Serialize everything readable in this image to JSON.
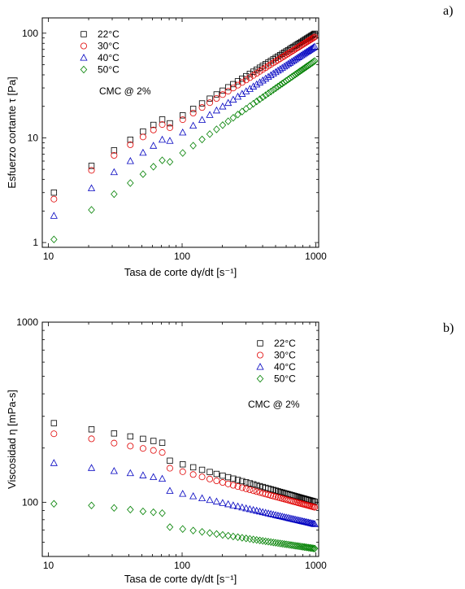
{
  "chart_data": [
    {
      "type": "scatter",
      "panel_label": "a)",
      "xlabel": "Tasa de corte dγ/dt [s⁻¹]",
      "ylabel": "Esfuerzo cortante τ [Pa]",
      "annotation": "CMC @ 2%",
      "xscale": "log",
      "yscale": "log",
      "xlim": [
        9,
        1050
      ],
      "ylim": [
        0.9,
        140
      ],
      "xticks": [
        10,
        100,
        1000
      ],
      "xtick_labels": [
        "10",
        "100",
        "1000"
      ],
      "yticks": [
        1,
        10,
        100
      ],
      "ytick_labels": [
        "1",
        "10",
        "100"
      ],
      "legend_position": "top-left",
      "series": [
        {
          "name": "22°C",
          "marker": "square",
          "color": "#000000",
          "k": 0.428,
          "n": 0.79,
          "sparse": [
            [
              11,
              3.0
            ],
            [
              21,
              5.4
            ],
            [
              31,
              7.6
            ],
            [
              41,
              9.6
            ],
            [
              51,
              11.5
            ],
            [
              61,
              13.3
            ],
            [
              71,
              15.0
            ]
          ]
        },
        {
          "name": "30°C",
          "marker": "circle",
          "color": "#e00000",
          "k": 0.372,
          "n": 0.8,
          "sparse": [
            [
              11,
              2.6
            ],
            [
              21,
              4.9
            ],
            [
              31,
              6.8
            ],
            [
              41,
              8.6
            ],
            [
              51,
              10.2
            ],
            [
              61,
              11.9
            ],
            [
              71,
              13.4
            ]
          ]
        },
        {
          "name": "40°C",
          "marker": "triangle",
          "color": "#0000c0",
          "k": 0.244,
          "n": 0.83,
          "sparse": [
            [
              11,
              1.8
            ],
            [
              21,
              3.3
            ],
            [
              31,
              4.7
            ],
            [
              41,
              6.0
            ],
            [
              51,
              7.2
            ],
            [
              61,
              8.4
            ],
            [
              71,
              9.6
            ]
          ]
        },
        {
          "name": "50°C",
          "marker": "diamond",
          "color": "#008000",
          "k": 0.118,
          "n": 0.89,
          "sparse": [
            [
              11,
              1.07
            ],
            [
              21,
              2.05
            ],
            [
              31,
              2.9
            ],
            [
              41,
              3.7
            ],
            [
              51,
              4.5
            ],
            [
              61,
              5.3
            ],
            [
              71,
              6.1
            ]
          ]
        }
      ],
      "dense_x": {
        "from": 81,
        "to": 1000,
        "step": 20
      }
    },
    {
      "type": "scatter",
      "panel_label": "b)",
      "xlabel": "Tasa de corte dγ/dt [s⁻¹]",
      "ylabel": "Viscosidad η [mPa-s]",
      "annotation": "CMC @ 2%",
      "xscale": "log",
      "yscale": "log",
      "xlim": [
        9,
        1050
      ],
      "ylim": [
        50,
        1000
      ],
      "xticks": [
        10,
        100,
        1000
      ],
      "xtick_labels": [
        "10",
        "100",
        "1000"
      ],
      "yticks": [
        100,
        1000
      ],
      "ytick_labels": [
        "100",
        "1000"
      ],
      "legend_position": "top-right",
      "series": [
        {
          "name": "22°C",
          "marker": "square",
          "color": "#000000",
          "k": 428,
          "n": -0.21,
          "sparse": [
            [
              11,
              275
            ],
            [
              21,
              254
            ],
            [
              31,
              241
            ],
            [
              41,
              232
            ],
            [
              51,
              225
            ],
            [
              61,
              219
            ],
            [
              71,
              214
            ]
          ]
        },
        {
          "name": "30°C",
          "marker": "circle",
          "color": "#e00000",
          "k": 372,
          "n": -0.2,
          "sparse": [
            [
              11,
              240
            ],
            [
              21,
              225
            ],
            [
              31,
              213
            ],
            [
              41,
              205
            ],
            [
              51,
              199
            ],
            [
              61,
              194
            ],
            [
              71,
              189
            ]
          ]
        },
        {
          "name": "40°C",
          "marker": "triangle",
          "color": "#0000c0",
          "k": 244,
          "n": -0.17,
          "sparse": [
            [
              11,
              165
            ],
            [
              21,
              155
            ],
            [
              31,
              149
            ],
            [
              41,
              145
            ],
            [
              51,
              141
            ],
            [
              61,
              138
            ],
            [
              71,
              135
            ]
          ]
        },
        {
          "name": "50°C",
          "marker": "diamond",
          "color": "#008000",
          "k": 118,
          "n": -0.11,
          "sparse": [
            [
              11,
              98
            ],
            [
              21,
              96
            ],
            [
              31,
              93
            ],
            [
              41,
              91
            ],
            [
              51,
              89
            ],
            [
              61,
              88
            ],
            [
              71,
              87
            ]
          ]
        }
      ],
      "dense_x": {
        "from": 81,
        "to": 1000,
        "step": 20
      }
    }
  ]
}
